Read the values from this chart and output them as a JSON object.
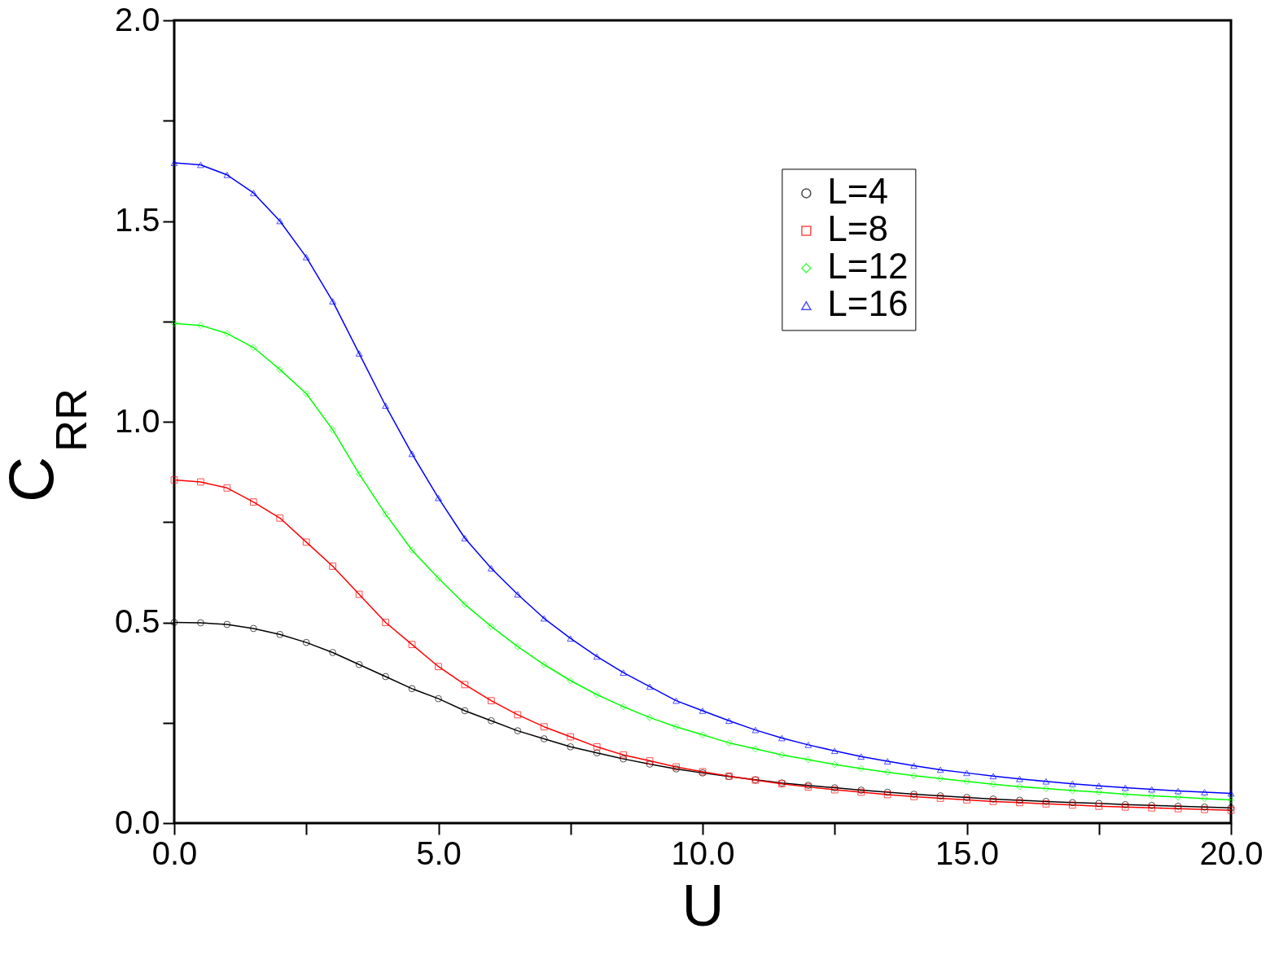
{
  "chart_data": {
    "type": "line",
    "xlabel": "U",
    "ylabel": "C$_{RR}$",
    "x": [
      0,
      0.5,
      1,
      1.5,
      2,
      2.5,
      3,
      3.5,
      4,
      4.5,
      5,
      5.5,
      6,
      6.5,
      7,
      7.5,
      8,
      8.5,
      9,
      9.5,
      10,
      10.5,
      11,
      11.5,
      12,
      12.5,
      13,
      13.5,
      14,
      14.5,
      15,
      15.5,
      16,
      16.5,
      17,
      17.5,
      18,
      18.5,
      19,
      19.5,
      20
    ],
    "series": [
      {
        "name": "L=4",
        "color": "#000000",
        "marker": "circle",
        "values": [
          0.5,
          0.499,
          0.495,
          0.485,
          0.47,
          0.45,
          0.425,
          0.395,
          0.365,
          0.335,
          0.31,
          0.28,
          0.255,
          0.23,
          0.21,
          0.19,
          0.175,
          0.16,
          0.147,
          0.135,
          0.125,
          0.116,
          0.108,
          0.1,
          0.094,
          0.088,
          0.082,
          0.077,
          0.072,
          0.068,
          0.064,
          0.06,
          0.057,
          0.054,
          0.051,
          0.049,
          0.046,
          0.044,
          0.042,
          0.04,
          0.038
        ]
      },
      {
        "name": "L=8",
        "color": "#ff0000",
        "marker": "square",
        "values": [
          0.855,
          0.85,
          0.835,
          0.8,
          0.76,
          0.7,
          0.64,
          0.57,
          0.5,
          0.445,
          0.39,
          0.345,
          0.305,
          0.27,
          0.24,
          0.215,
          0.19,
          0.17,
          0.155,
          0.14,
          0.128,
          0.117,
          0.107,
          0.098,
          0.09,
          0.083,
          0.077,
          0.071,
          0.066,
          0.062,
          0.058,
          0.054,
          0.051,
          0.048,
          0.045,
          0.042,
          0.04,
          0.038,
          0.036,
          0.034,
          0.032
        ]
      },
      {
        "name": "L=12",
        "color": "#00ff00",
        "marker": "diamond",
        "values": [
          1.245,
          1.24,
          1.22,
          1.185,
          1.13,
          1.07,
          0.98,
          0.87,
          0.77,
          0.68,
          0.61,
          0.545,
          0.49,
          0.44,
          0.395,
          0.355,
          0.32,
          0.29,
          0.263,
          0.24,
          0.22,
          0.2,
          0.185,
          0.17,
          0.158,
          0.146,
          0.136,
          0.127,
          0.118,
          0.111,
          0.104,
          0.097,
          0.091,
          0.086,
          0.081,
          0.077,
          0.072,
          0.068,
          0.065,
          0.061,
          0.058
        ]
      },
      {
        "name": "L=16",
        "color": "#0000ff",
        "marker": "triangle",
        "values": [
          1.645,
          1.64,
          1.615,
          1.57,
          1.5,
          1.41,
          1.3,
          1.17,
          1.04,
          0.92,
          0.81,
          0.71,
          0.635,
          0.57,
          0.51,
          0.46,
          0.415,
          0.375,
          0.34,
          0.305,
          0.28,
          0.255,
          0.232,
          0.212,
          0.195,
          0.18,
          0.166,
          0.154,
          0.143,
          0.133,
          0.125,
          0.117,
          0.11,
          0.104,
          0.098,
          0.093,
          0.088,
          0.084,
          0.08,
          0.077,
          0.074
        ]
      }
    ],
    "xlim": [
      0,
      20
    ],
    "xticks": [
      {
        "value": 0,
        "label": "0.0"
      },
      {
        "value": 2.5,
        "label": null
      },
      {
        "value": 5,
        "label": "5.0"
      },
      {
        "value": 7.5,
        "label": null
      },
      {
        "value": 10,
        "label": "10.0"
      },
      {
        "value": 12.5,
        "label": null
      },
      {
        "value": 15,
        "label": "15.0"
      },
      {
        "value": 17.5,
        "label": null
      },
      {
        "value": 20,
        "label": "20.0"
      }
    ],
    "ylim": [
      0,
      2
    ],
    "yticks": [
      {
        "value": 0,
        "label": "0.0"
      },
      {
        "value": 0.25,
        "label": null
      },
      {
        "value": 0.5,
        "label": "0.5"
      },
      {
        "value": 0.75,
        "label": null
      },
      {
        "value": 1,
        "label": "1.0"
      },
      {
        "value": 1.25,
        "label": null
      },
      {
        "value": 1.5,
        "label": "1.5"
      },
      {
        "value": 1.75,
        "label": null
      },
      {
        "value": 2,
        "label": "2.0"
      }
    ],
    "grid": false,
    "legend": "top right",
    "line_style": "solid"
  }
}
